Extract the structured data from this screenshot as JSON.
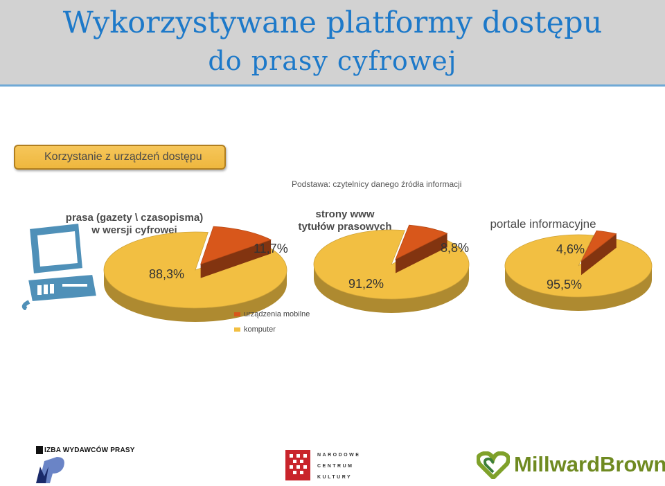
{
  "header": {
    "title_line1": "Wykorzystywane platformy dostępu",
    "title_line2": "do prasy cyfrowej"
  },
  "section_label": "Korzystanie z urządzeń dostępu",
  "base_note": "Podstawa: czytelnicy danego źródła informacji",
  "colors": {
    "mobile": "#d8571b",
    "computer": "#f2bf42",
    "accent": "#1d79c9"
  },
  "chart_data": [
    {
      "type": "pie",
      "title_lines": [
        "prasa (gazety \\ czasopisma)",
        "w wersji cyfrowej"
      ],
      "categories": [
        "urządzenia mobilne",
        "komputer"
      ],
      "values": [
        11.7,
        88.3
      ],
      "value_labels": [
        "11,7%",
        "88,3%"
      ]
    },
    {
      "type": "pie",
      "title_lines": [
        "strony www",
        "tytułów prasowych"
      ],
      "categories": [
        "urządzenia mobilne",
        "komputer"
      ],
      "values": [
        8.8,
        91.2
      ],
      "value_labels": [
        "8,8%",
        "91,2%"
      ]
    },
    {
      "type": "pie",
      "title_lines": [
        "portale informacyjne"
      ],
      "categories": [
        "urządzenia mobilne",
        "komputer"
      ],
      "values": [
        4.6,
        95.5
      ],
      "value_labels": [
        "4,6%",
        "95,5%"
      ]
    }
  ],
  "legend": {
    "items": [
      {
        "label": "urządzenia mobilne",
        "color": "#d8571b"
      },
      {
        "label": "komputer",
        "color": "#f2bf42"
      }
    ],
    "placement": "bottom-left"
  },
  "logos": {
    "izba": "IZBA WYDAWCÓW PRASY",
    "nck": [
      "NARODOWE",
      "CENTRUM",
      "KULTURY"
    ],
    "millward": "MillwardBrown"
  },
  "icons": {
    "computer": "computer-icon"
  }
}
